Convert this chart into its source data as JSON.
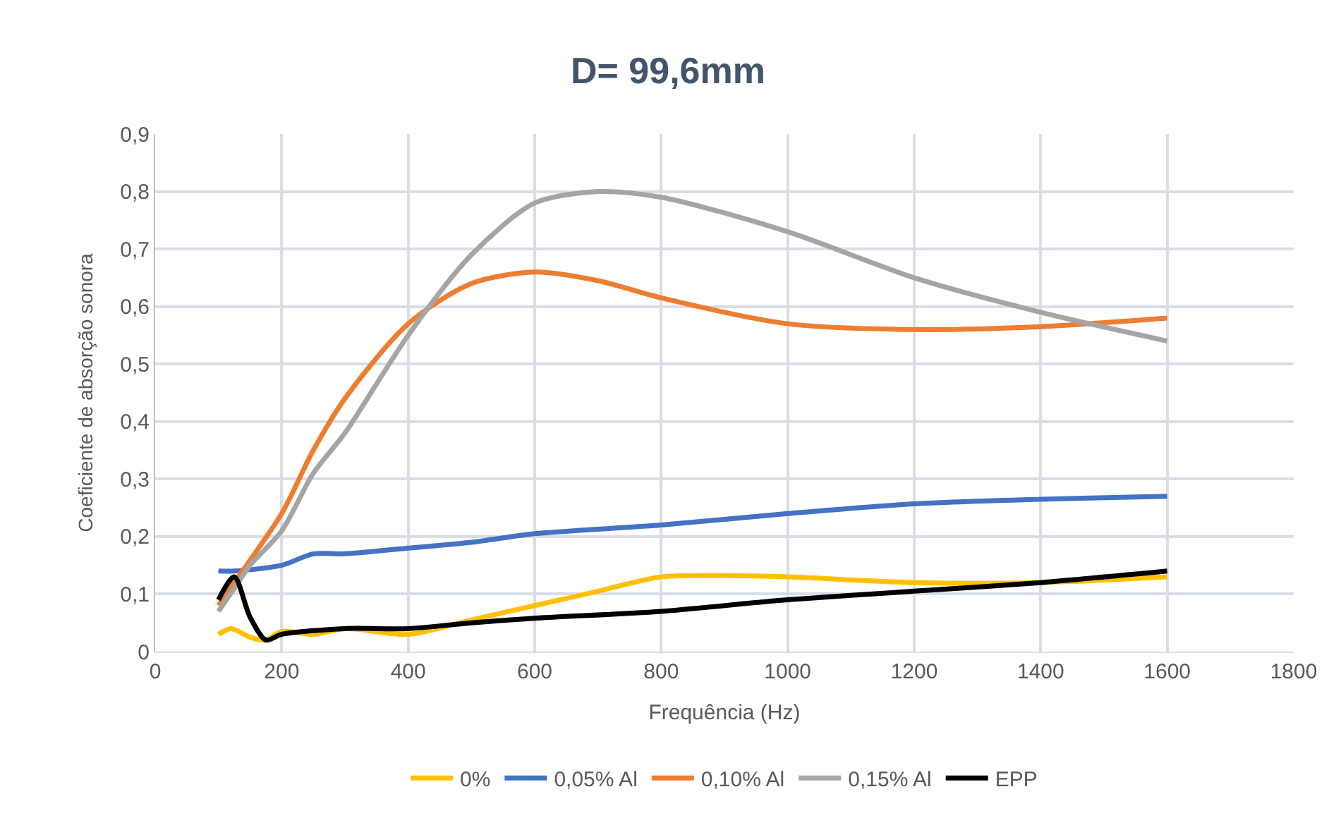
{
  "chart_data": {
    "type": "line",
    "title": "D= 99,6mm",
    "xlabel": "Frequência (Hz)",
    "ylabel": "Coeficiente de absorção sonora",
    "xlim": [
      0,
      1800
    ],
    "xticks": [
      0,
      200,
      400,
      600,
      800,
      1000,
      1200,
      1400,
      1600,
      1800
    ],
    "ylim": [
      0,
      0.9
    ],
    "yticks": [
      {
        "value": 0,
        "label": "0"
      },
      {
        "value": 0.1,
        "label": "0,1"
      },
      {
        "value": 0.2,
        "label": "0,2"
      },
      {
        "value": 0.3,
        "label": "0,3"
      },
      {
        "value": 0.4,
        "label": "0,4"
      },
      {
        "value": 0.5,
        "label": "0,5"
      },
      {
        "value": 0.6,
        "label": "0,6"
      },
      {
        "value": 0.7,
        "label": "0,7"
      },
      {
        "value": 0.8,
        "label": "0,8"
      },
      {
        "value": 0.9,
        "label": "0,9"
      }
    ],
    "grid": true,
    "legend": "bottom",
    "marker": "none",
    "line_style": "solid",
    "series": [
      {
        "name": "0%",
        "color": "#ffc000",
        "x": [
          100,
          120,
          150,
          175,
          200,
          250,
          300,
          400,
          500,
          600,
          700,
          800,
          900,
          1000,
          1200,
          1400,
          1600
        ],
        "values": [
          0.03,
          0.04,
          0.025,
          0.02,
          0.035,
          0.03,
          0.04,
          0.03,
          0.055,
          0.08,
          0.105,
          0.13,
          0.132,
          0.13,
          0.12,
          0.12,
          0.13
        ]
      },
      {
        "name": "0,05% Al",
        "color": "#4472c4",
        "x": [
          100,
          125,
          200,
          250,
          300,
          400,
          500,
          600,
          800,
          1000,
          1200,
          1400,
          1600
        ],
        "values": [
          0.14,
          0.14,
          0.15,
          0.17,
          0.17,
          0.18,
          0.19,
          0.205,
          0.22,
          0.24,
          0.257,
          0.265,
          0.27
        ]
      },
      {
        "name": "0,10% Al",
        "color": "#ed7d31",
        "x": [
          100,
          125,
          200,
          250,
          300,
          400,
          500,
          600,
          700,
          800,
          1000,
          1200,
          1400,
          1600
        ],
        "values": [
          0.08,
          0.12,
          0.24,
          0.35,
          0.44,
          0.57,
          0.64,
          0.66,
          0.645,
          0.615,
          0.57,
          0.56,
          0.565,
          0.58
        ]
      },
      {
        "name": "0,15% Al",
        "color": "#a5a5a5",
        "x": [
          100,
          125,
          150,
          200,
          250,
          300,
          400,
          500,
          600,
          700,
          800,
          1000,
          1200,
          1400,
          1600
        ],
        "values": [
          0.07,
          0.11,
          0.15,
          0.21,
          0.31,
          0.38,
          0.55,
          0.69,
          0.78,
          0.8,
          0.79,
          0.73,
          0.65,
          0.59,
          0.54
        ]
      },
      {
        "name": "EPP",
        "color": "#000000",
        "x": [
          100,
          125,
          150,
          175,
          200,
          300,
          400,
          500,
          600,
          800,
          1000,
          1200,
          1400,
          1600
        ],
        "values": [
          0.09,
          0.13,
          0.06,
          0.02,
          0.03,
          0.04,
          0.04,
          0.05,
          0.058,
          0.07,
          0.09,
          0.105,
          0.12,
          0.14
        ]
      }
    ]
  }
}
